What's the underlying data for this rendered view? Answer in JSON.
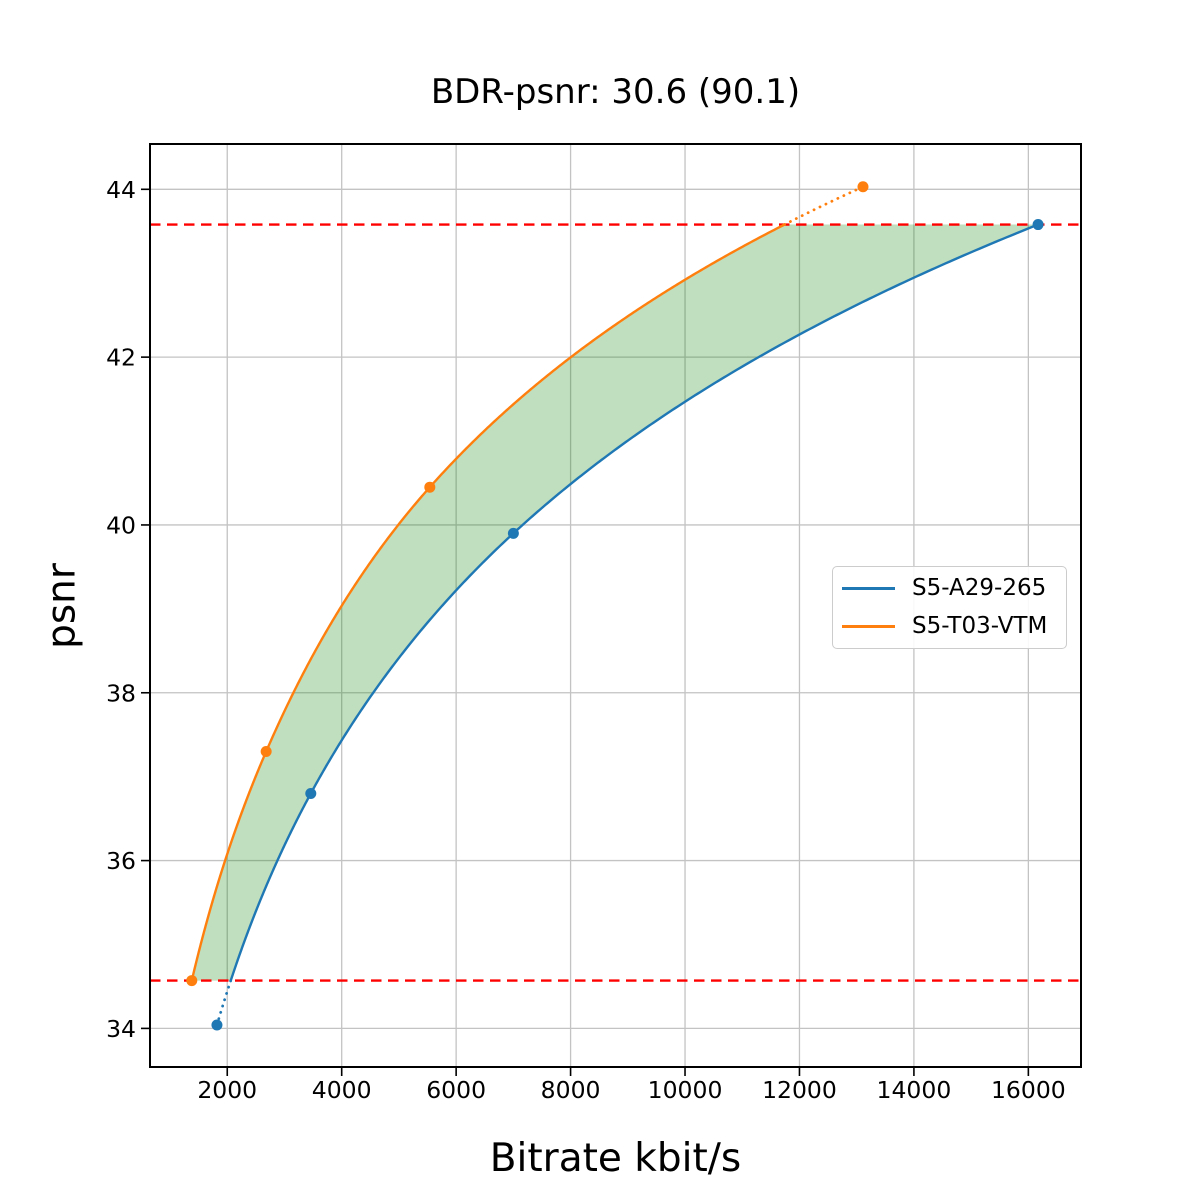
{
  "chart_data": {
    "type": "line",
    "title": "BDR-psnr: 30.6 (90.1)",
    "xlabel": "Bitrate kbit/s",
    "ylabel": "psnr",
    "xlim": [
      650,
      16920
    ],
    "ylim": [
      33.54,
      44.54
    ],
    "x_ticks": [
      2000,
      4000,
      6000,
      8000,
      10000,
      12000,
      14000,
      16000
    ],
    "y_ticks": [
      34,
      36,
      38,
      40,
      42,
      44
    ],
    "grid": true,
    "legend_position": "center right",
    "interpolation": "pchip-on-log-bitrate",
    "series": [
      {
        "name": "S5-A29-265",
        "color": "#1f77b4",
        "points": [
          [
            1820,
            34.04
          ],
          [
            3460,
            36.8
          ],
          [
            7000,
            39.9
          ],
          [
            16170,
            43.58
          ]
        ]
      },
      {
        "name": "S5-T03-VTM",
        "color": "#ff7f0e",
        "points": [
          [
            1380,
            34.57
          ],
          [
            2680,
            37.3
          ],
          [
            5540,
            40.45
          ],
          [
            13110,
            44.03
          ]
        ]
      }
    ],
    "overlap_region": {
      "psnr_low": 34.57,
      "psnr_high": 43.58,
      "line_color": "#ff0000",
      "line_style": "dashed"
    },
    "fill_between": {
      "color": "#008000",
      "opacity": 0.25
    }
  }
}
